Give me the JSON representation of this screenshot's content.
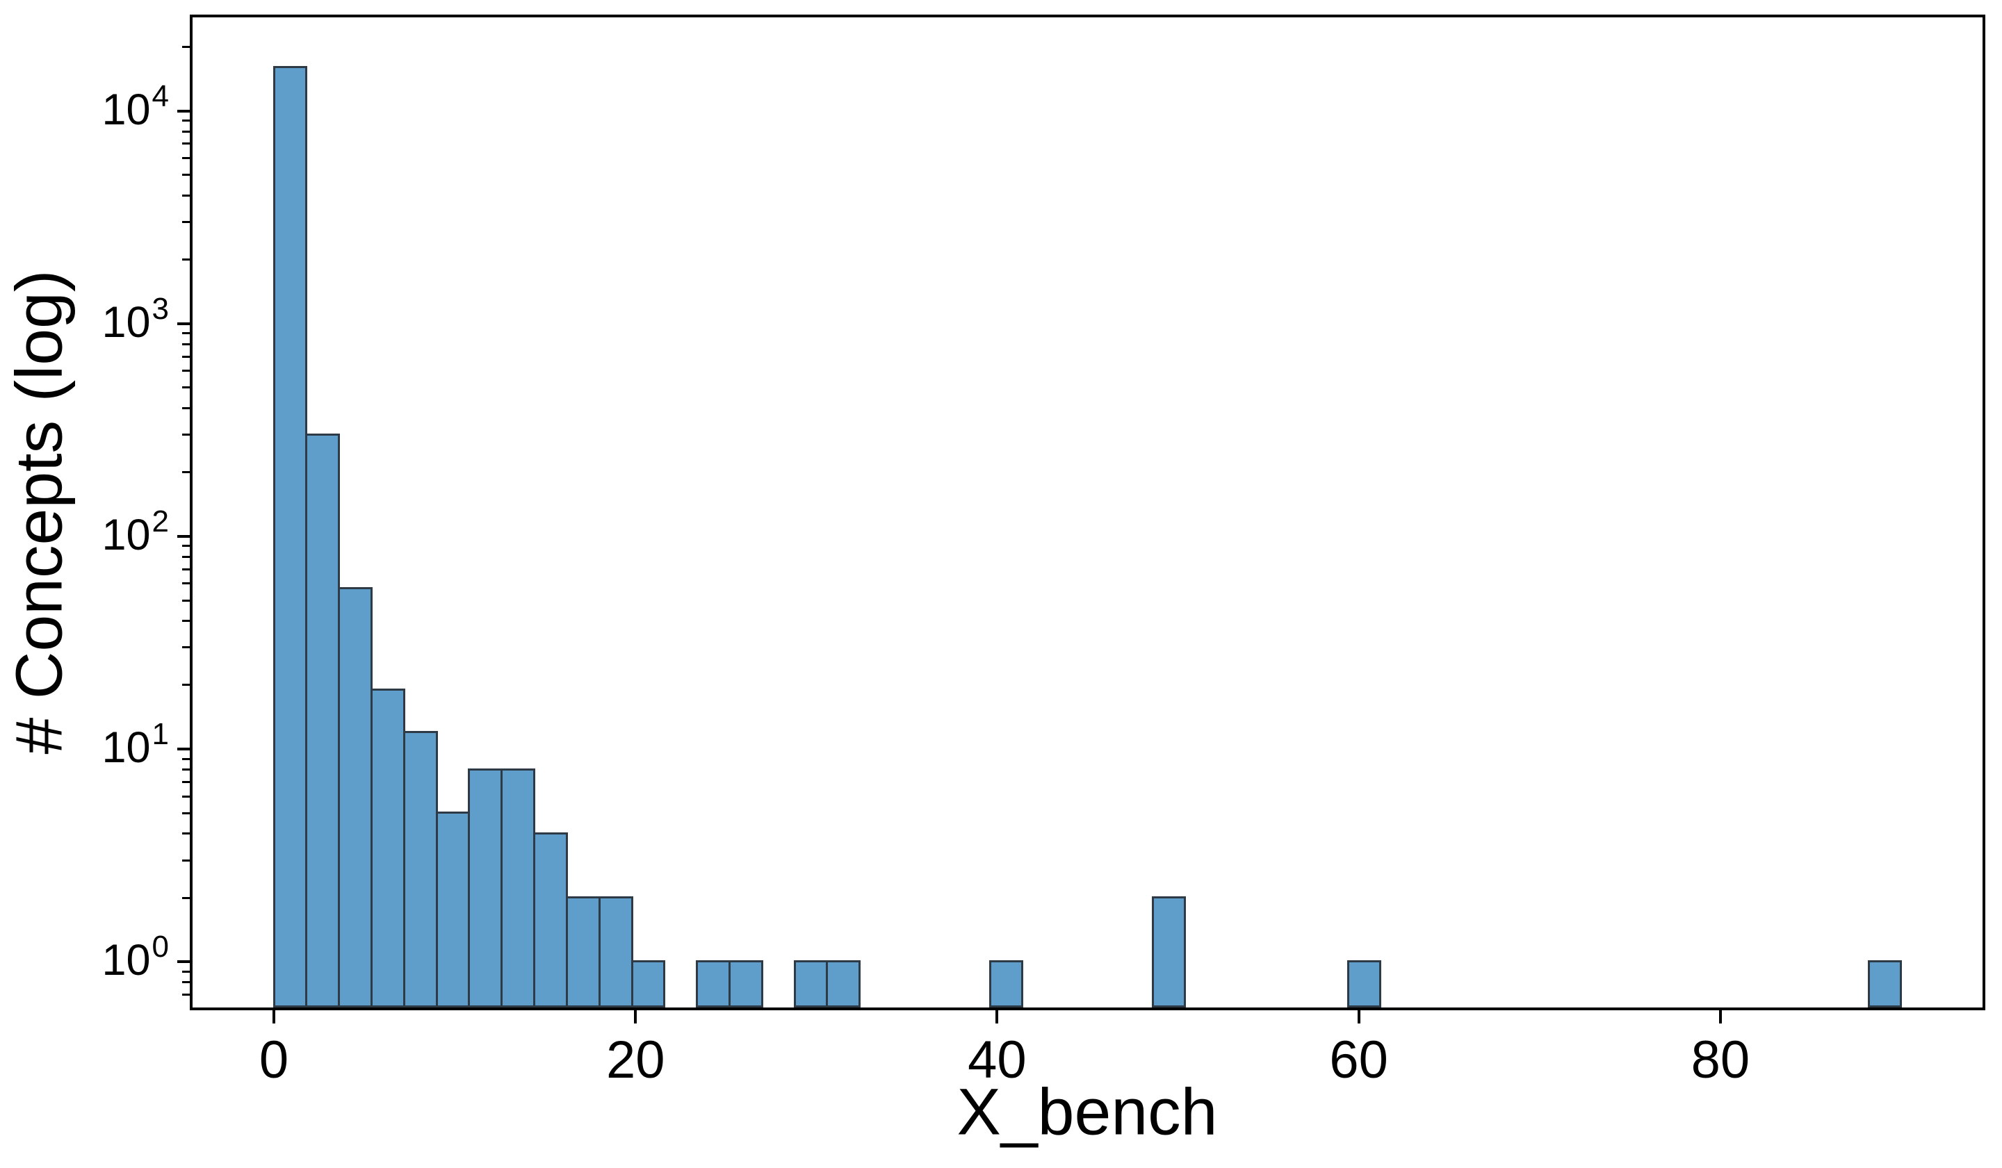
{
  "chart_data": {
    "type": "histogram",
    "title": "",
    "xlabel": "X_bench",
    "ylabel": "# Concepts (log)",
    "yscale": "log",
    "grid": false,
    "legend": "none",
    "xlim": [
      -4.5,
      94.5
    ],
    "ylim": [
      0.61,
      27500
    ],
    "bin_width": 1.8,
    "bins": [
      {
        "x0": 0.0,
        "x1": 1.8,
        "count": 16000
      },
      {
        "x0": 1.8,
        "x1": 3.6,
        "count": 300
      },
      {
        "x0": 3.6,
        "x1": 5.4,
        "count": 57
      },
      {
        "x0": 5.4,
        "x1": 7.2,
        "count": 19
      },
      {
        "x0": 7.2,
        "x1": 9.0,
        "count": 12
      },
      {
        "x0": 9.0,
        "x1": 10.8,
        "count": 5
      },
      {
        "x0": 10.8,
        "x1": 12.6,
        "count": 8
      },
      {
        "x0": 12.6,
        "x1": 14.4,
        "count": 8
      },
      {
        "x0": 14.4,
        "x1": 16.2,
        "count": 4
      },
      {
        "x0": 16.2,
        "x1": 18.0,
        "count": 2
      },
      {
        "x0": 18.0,
        "x1": 19.8,
        "count": 2
      },
      {
        "x0": 19.8,
        "x1": 21.6,
        "count": 1
      },
      {
        "x0": 23.4,
        "x1": 25.2,
        "count": 1
      },
      {
        "x0": 25.2,
        "x1": 27.0,
        "count": 1
      },
      {
        "x0": 28.8,
        "x1": 30.6,
        "count": 1
      },
      {
        "x0": 30.6,
        "x1": 32.4,
        "count": 1
      },
      {
        "x0": 39.6,
        "x1": 41.4,
        "count": 1
      },
      {
        "x0": 48.6,
        "x1": 50.4,
        "count": 2
      },
      {
        "x0": 59.4,
        "x1": 61.2,
        "count": 1
      },
      {
        "x0": 88.2,
        "x1": 90.0,
        "count": 1
      }
    ],
    "x_ticks": [
      0,
      20,
      40,
      60,
      80
    ],
    "y_ticks": [
      {
        "value": 1,
        "base": "10",
        "exp": "0"
      },
      {
        "value": 10,
        "base": "10",
        "exp": "1"
      },
      {
        "value": 100,
        "base": "10",
        "exp": "2"
      },
      {
        "value": 1000,
        "base": "10",
        "exp": "3"
      },
      {
        "value": 10000,
        "base": "10",
        "exp": "4"
      }
    ],
    "colors": {
      "bar_fill": "#5F9DCB",
      "bar_edge": "#2E3A46",
      "axis": "#000000",
      "text": "#000000",
      "background": "#FFFFFF"
    }
  }
}
